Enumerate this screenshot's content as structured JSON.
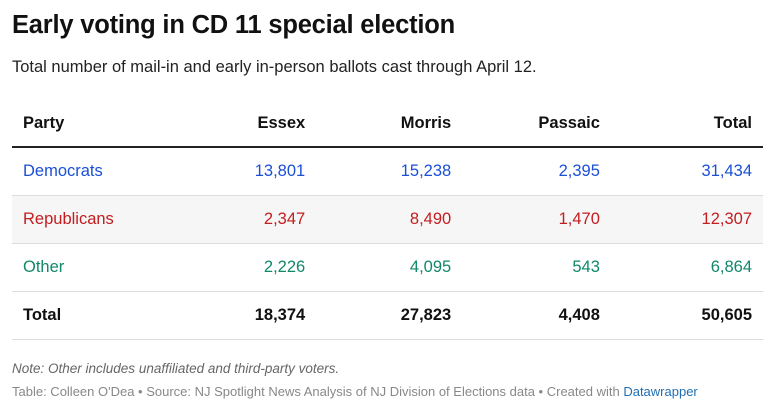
{
  "chart_data": {
    "type": "table",
    "title": "Early voting in CD 11 special election",
    "subtitle": "Total number of mail-in and early in-person ballots cast through April 12.",
    "columns": [
      "Party",
      "Essex",
      "Morris",
      "Passaic",
      "Total"
    ],
    "rows": [
      {
        "party": "Democrats",
        "essex": "13,801",
        "morris": "15,238",
        "passaic": "2,395",
        "total": "31,434",
        "color": "#1a4fd6"
      },
      {
        "party": "Republicans",
        "essex": "2,347",
        "morris": "8,490",
        "passaic": "1,470",
        "total": "12,307",
        "color": "#c21d20"
      },
      {
        "party": "Other",
        "essex": "2,226",
        "morris": "4,095",
        "passaic": "543",
        "total": "6,864",
        "color": "#11886a"
      },
      {
        "party": "Total",
        "essex": "18,374",
        "morris": "27,823",
        "passaic": "4,408",
        "total": "50,605"
      }
    ],
    "note": "Note: Other includes unaffiliated and third-party voters.",
    "source_line": "Table: Colleen O'Dea • Source: NJ Spotlight News Analysis of NJ Division of Elections data • Created with",
    "credit_link": "Datawrapper"
  }
}
